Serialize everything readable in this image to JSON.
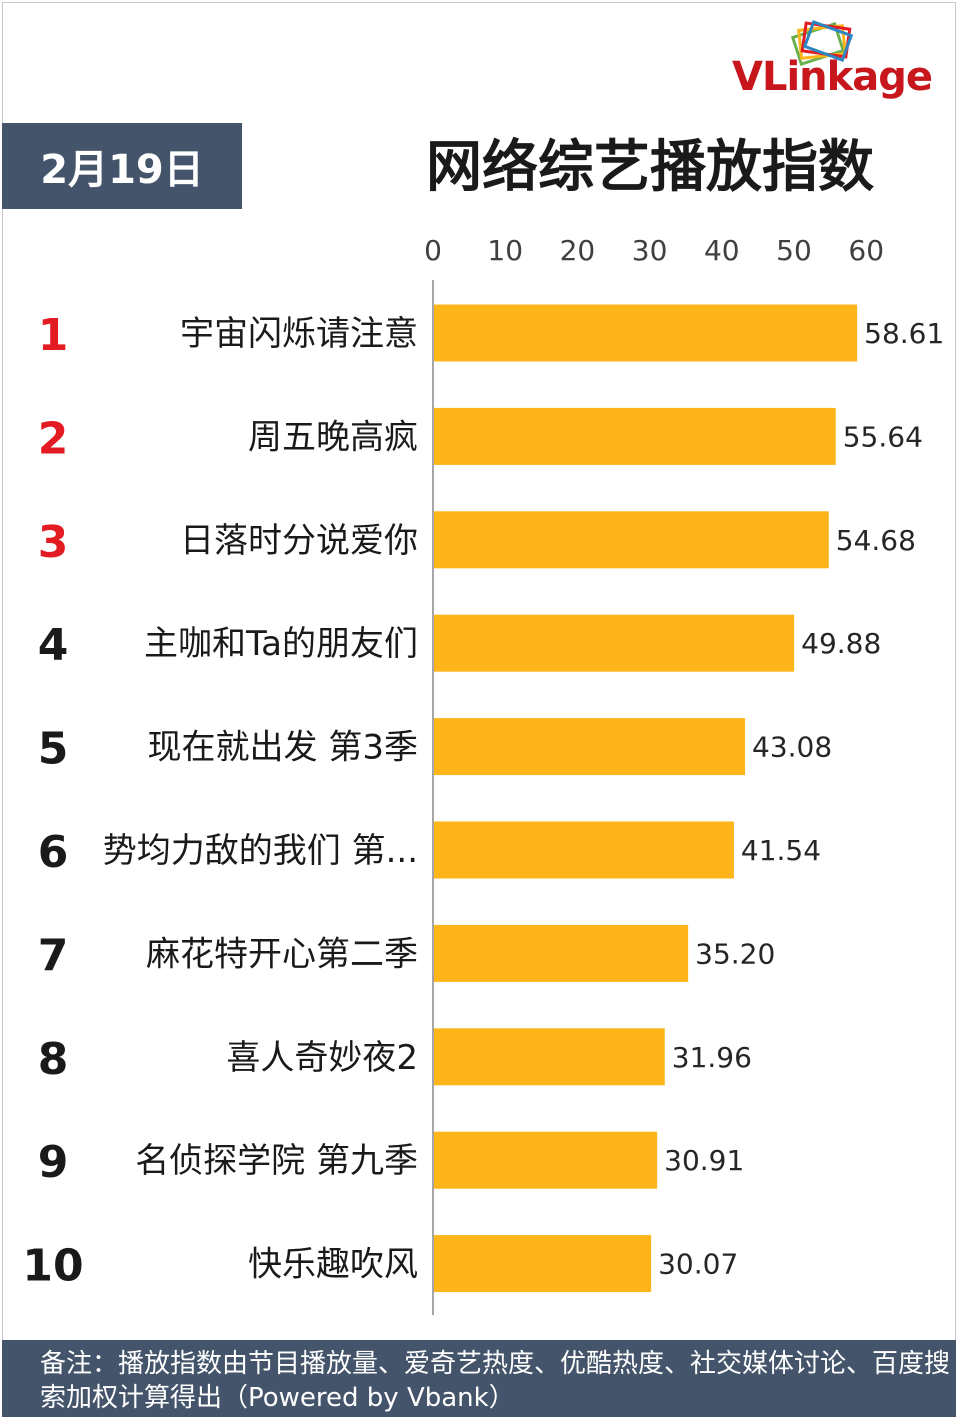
{
  "header": {
    "date": "2月19日",
    "title": "网络综艺播放指数",
    "logo_text": "VLinkage"
  },
  "footer": {
    "note": "备注：播放指数由节目播放量、爱奇艺热度、优酷热度、社交媒体讨论、百度搜索加权计算得出（Powered by Vbank）"
  },
  "colors": {
    "bar": "#fdb51a",
    "rank_top": "#e31b23",
    "rank_other": "#1a1a1a",
    "panel": "#44546a",
    "axis": "#a6a6a6"
  },
  "chart_data": {
    "type": "bar",
    "orientation": "horizontal",
    "title": "网络综艺播放指数",
    "ranks": [
      "1",
      "2",
      "3",
      "4",
      "5",
      "6",
      "7",
      "8",
      "9",
      "10"
    ],
    "categories": [
      "宇宙闪烁请注意",
      "周五晚高疯",
      "日落时分说爱你",
      "主咖和Ta的朋友们",
      "现在就出发 第3季",
      "势均力敌的我们 第...",
      "麻花特开心第二季",
      "喜人奇妙夜2",
      "名侦探学院 第九季",
      "快乐趣吹风"
    ],
    "values": [
      58.61,
      55.64,
      54.68,
      49.88,
      43.08,
      41.54,
      35.2,
      31.96,
      30.91,
      30.07
    ],
    "value_labels": [
      "58.61",
      "55.64",
      "54.68",
      "49.88",
      "43.08",
      "41.54",
      "35.20",
      "31.96",
      "30.91",
      "30.07"
    ],
    "xlim": [
      0,
      60
    ],
    "x_ticks": [
      "0",
      "10",
      "20",
      "30",
      "40",
      "50",
      "60"
    ],
    "axis_position": "top",
    "grid": false,
    "legend": "none"
  }
}
